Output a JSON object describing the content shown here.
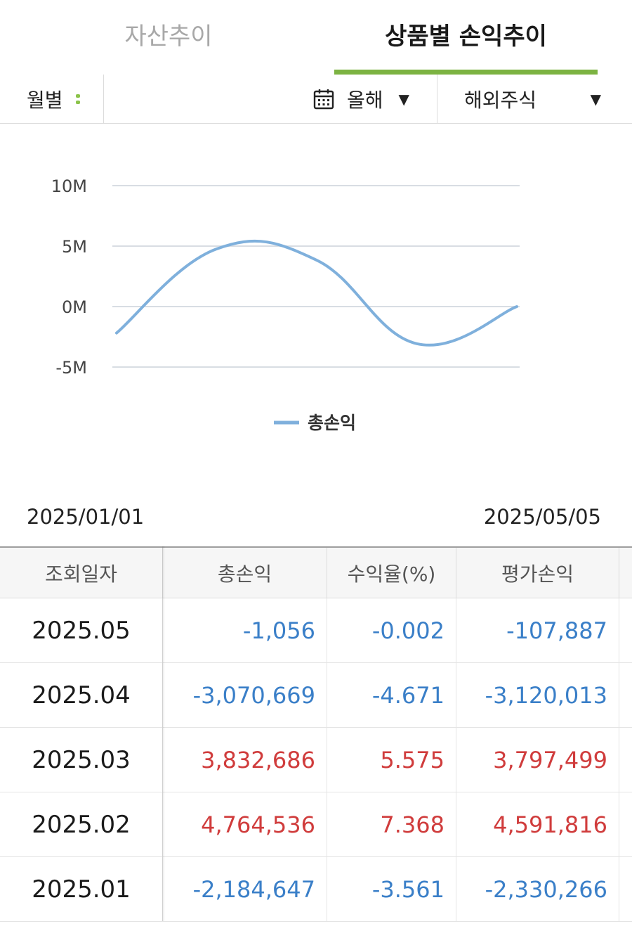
{
  "tabs": [
    {
      "label": "자산추이",
      "active": false
    },
    {
      "label": "상품별 손익추이",
      "active": true
    }
  ],
  "accent_color": "#7cb342",
  "filters": {
    "period": "월별",
    "period_icon": "drag-handle-icon",
    "range": "올해",
    "range_icon": "calendar-icon",
    "market": "해외주식"
  },
  "chart_data": {
    "type": "line",
    "x": [
      "2025.01",
      "2025.02",
      "2025.03",
      "2025.04",
      "2025.05"
    ],
    "series": [
      {
        "name": "총손익",
        "values": [
          -2184647,
          4764536,
          3832686,
          -3070669,
          -1056
        ],
        "color": "#7fb0dc"
      }
    ],
    "yticks": [
      "10M",
      "5M",
      "0M",
      "-5M"
    ],
    "ylim": [
      -5000000,
      10000000
    ],
    "grid": true,
    "legend": "bottom-center"
  },
  "date_range": {
    "start": "2025/01/01",
    "end": "2025/05/05"
  },
  "table": {
    "headers": [
      "조회일자",
      "총손익",
      "수익율(%)",
      "평가손익"
    ],
    "rows": [
      {
        "date": "2025.05",
        "total": "-1,056",
        "rate": "-0.002",
        "eval": "-107,887",
        "sign": "neg"
      },
      {
        "date": "2025.04",
        "total": "-3,070,669",
        "rate": "-4.671",
        "eval": "-3,120,013",
        "sign": "neg"
      },
      {
        "date": "2025.03",
        "total": "3,832,686",
        "rate": "5.575",
        "eval": "3,797,499",
        "sign": "pos"
      },
      {
        "date": "2025.02",
        "total": "4,764,536",
        "rate": "7.368",
        "eval": "4,591,816",
        "sign": "pos"
      },
      {
        "date": "2025.01",
        "total": "-2,184,647",
        "rate": "-3.561",
        "eval": "-2,330,266",
        "sign": "neg"
      }
    ]
  }
}
